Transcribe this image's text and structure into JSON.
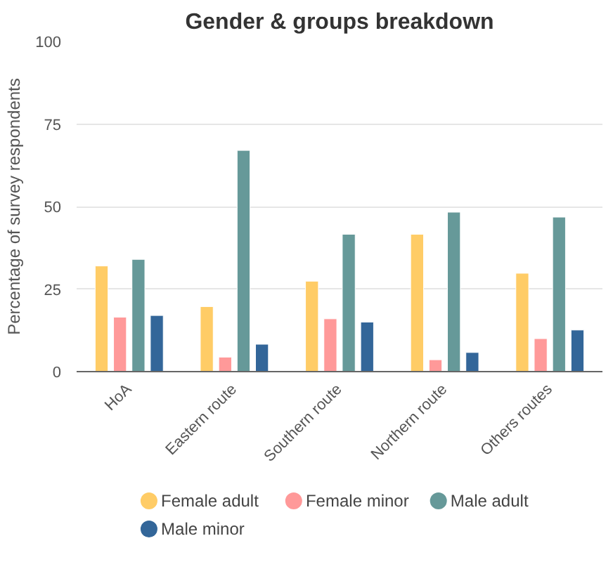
{
  "chart_data": {
    "type": "bar",
    "title": "Gender & groups breakdown",
    "ylabel": "Percentage of survey respondents",
    "categories": [
      "HoA",
      "Eastern route",
      "Southern route",
      "Northern route",
      "Others routes"
    ],
    "series": [
      {
        "name": "Female adult",
        "color": "#ffcc66",
        "values": [
          32,
          19.7,
          27.4,
          41.6,
          29.8
        ]
      },
      {
        "name": "Female minor",
        "color": "#ff9999",
        "values": [
          16.5,
          4.4,
          16,
          3.6,
          10
        ]
      },
      {
        "name": "Male adult",
        "color": "#669999",
        "values": [
          34,
          67,
          41.6,
          48.3,
          46.8
        ]
      },
      {
        "name": "Male minor",
        "color": "#336699",
        "values": [
          17,
          8.3,
          15,
          5.8,
          12.6
        ]
      }
    ],
    "ylim": [
      0,
      100
    ],
    "yticks": [
      0,
      25,
      50,
      75,
      100
    ],
    "grid": "y",
    "legend": "bottom"
  }
}
